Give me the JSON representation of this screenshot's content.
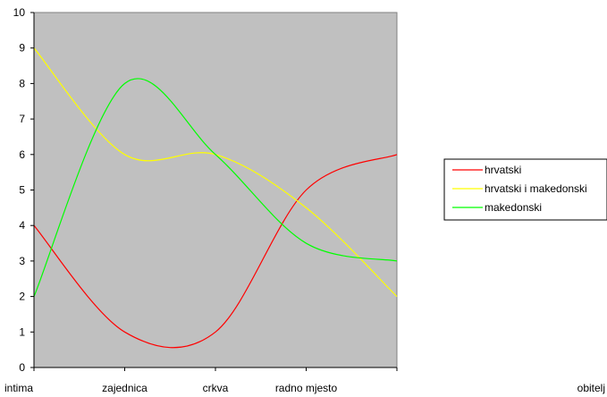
{
  "chart_data": {
    "type": "line",
    "categories": [
      "intima",
      "zajednica",
      "crkva",
      "radno mjesto",
      "obitelj"
    ],
    "ylim": [
      0,
      10
    ],
    "yticks": [
      0,
      1,
      2,
      3,
      4,
      5,
      6,
      7,
      8,
      9,
      10
    ],
    "grid": false,
    "plot_background": "#c0c0c0",
    "legend_position": "right",
    "series": [
      {
        "name": "hrvatski",
        "color": "#ff0000",
        "values": [
          4,
          1,
          1,
          5,
          6
        ]
      },
      {
        "name": "hrvatski i makedonski",
        "color": "#ffff00",
        "values": [
          9,
          6,
          6,
          4.5,
          2
        ]
      },
      {
        "name": "makedonski",
        "color": "#00ff00",
        "values": [
          2,
          8,
          6,
          3.5,
          3
        ]
      }
    ]
  }
}
